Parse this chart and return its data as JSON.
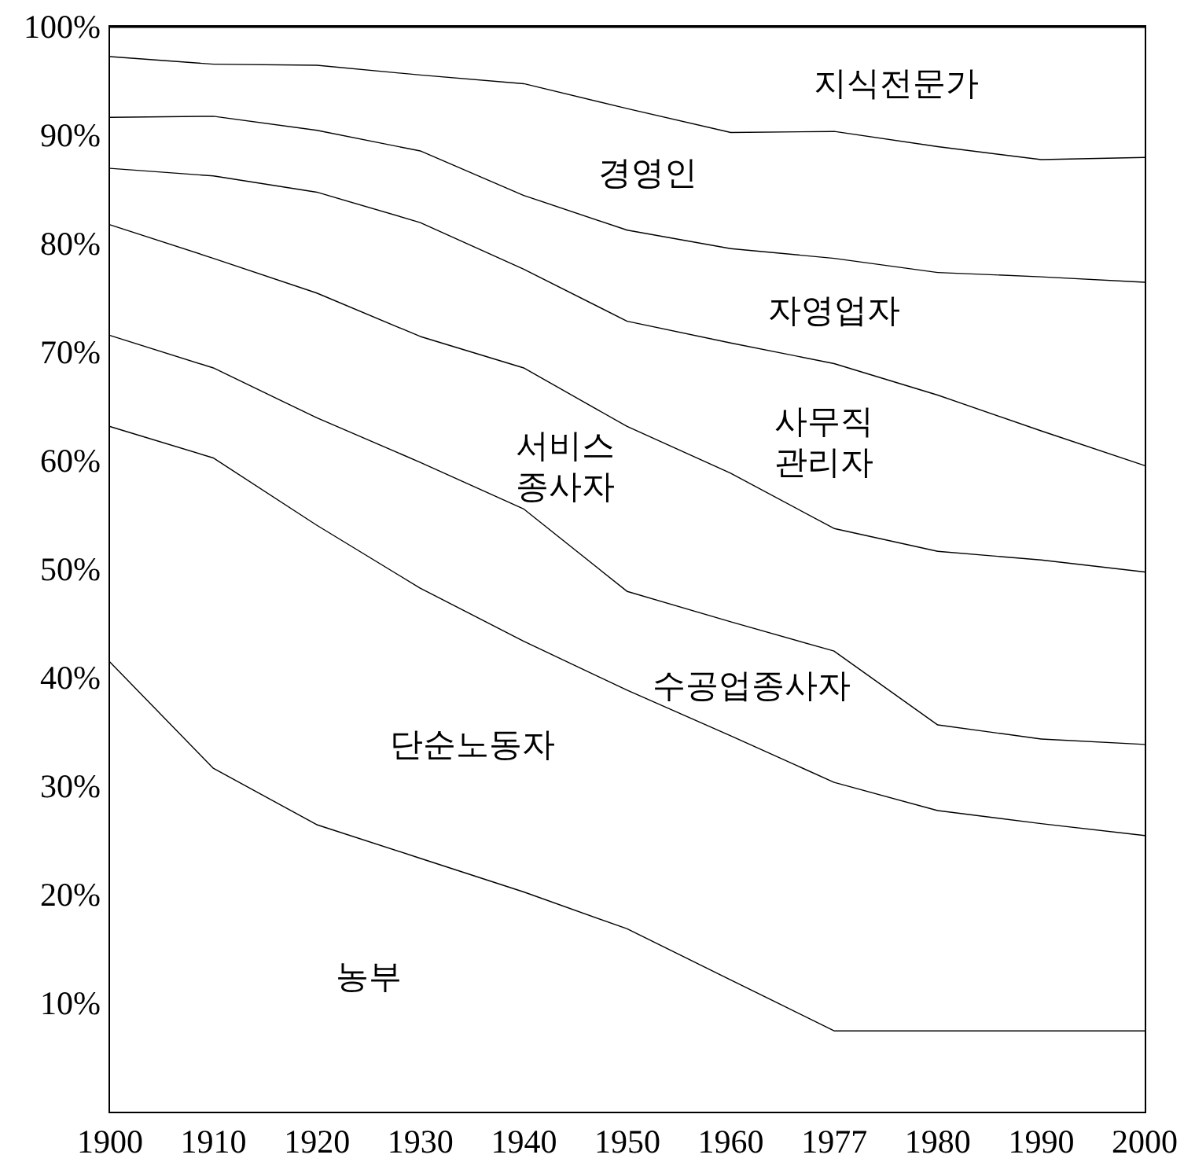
{
  "chart_data": {
    "type": "area",
    "stacked": true,
    "categories": [
      "1900",
      "1910",
      "1920",
      "1930",
      "1940",
      "1950",
      "1960",
      "1977",
      "1980",
      "1990",
      "2000"
    ],
    "ylim": [
      0,
      100
    ],
    "yticks": [
      {
        "value": 10,
        "label": "10%"
      },
      {
        "value": 20,
        "label": "20%"
      },
      {
        "value": 30,
        "label": "30%"
      },
      {
        "value": 40,
        "label": "40%"
      },
      {
        "value": 50,
        "label": "50%"
      },
      {
        "value": 60,
        "label": "60%"
      },
      {
        "value": 70,
        "label": "70%"
      },
      {
        "value": 80,
        "label": "80%"
      },
      {
        "value": 90,
        "label": "90%"
      },
      {
        "value": 100,
        "label": "100%"
      }
    ],
    "series": [
      {
        "name": "농부",
        "color": "#000000",
        "values": [
          41.5,
          31.7,
          26.5,
          23.4,
          20.3,
          16.9,
          12.2,
          7.5,
          7.5,
          7.5,
          7.5
        ]
      },
      {
        "name": "단순노동자",
        "color": "#000000",
        "values": [
          21.7,
          28.6,
          27.6,
          24.9,
          23.1,
          22.0,
          22.5,
          22.9,
          20.3,
          19.1,
          18.0
        ]
      },
      {
        "name": "수공업종사자",
        "color": "#000000",
        "values": [
          8.4,
          8.3,
          9.9,
          11.6,
          12.2,
          9.1,
          10.5,
          12.1,
          7.9,
          7.8,
          8.4
        ]
      },
      {
        "name": "서비스종사자",
        "color": "#000000",
        "values": [
          10.2,
          10.1,
          11.5,
          11.6,
          13.0,
          15.2,
          13.7,
          11.3,
          16.0,
          16.5,
          15.9
        ]
      },
      {
        "name": "사무직관리자",
        "color": "#000000",
        "values": [
          5.2,
          7.6,
          9.3,
          10.5,
          9.1,
          9.7,
          12.0,
          15.2,
          14.4,
          11.9,
          9.8
        ]
      },
      {
        "name": "자영업자",
        "color": "#000000",
        "values": [
          4.7,
          5.5,
          5.7,
          6.6,
          6.8,
          8.4,
          8.7,
          9.7,
          11.3,
          14.2,
          16.9
        ]
      },
      {
        "name": "경영인",
        "color": "#000000",
        "values": [
          5.6,
          4.8,
          6.0,
          7.0,
          10.3,
          11.2,
          10.7,
          11.7,
          11.6,
          10.8,
          11.5
        ]
      },
      {
        "name": "지식전문가",
        "color": "#000000",
        "values": [
          2.7,
          3.4,
          3.5,
          4.4,
          5.2,
          7.5,
          9.7,
          9.6,
          11.0,
          12.2,
          12.0
        ]
      }
    ]
  }
}
